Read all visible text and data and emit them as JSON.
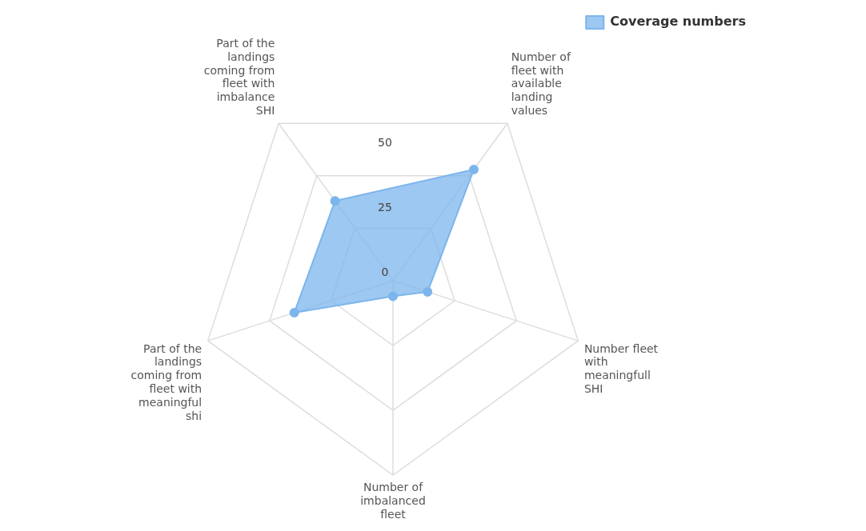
{
  "chart_data": {
    "type": "radar",
    "categories": [
      "Number of fleet with available landing values",
      "Number fleet with meaningfull SHI",
      "Number of imbalanced fleet",
      "Part of the landings coming from fleet with meaningful shi",
      "Part of the landings coming from fleet with imbalance SHI"
    ],
    "series": [
      {
        "name": "Coverage numbers",
        "color": "#7cb5ec",
        "values": [
          53,
          14,
          6,
          40,
          38
        ]
      }
    ],
    "ylim": [
      0,
      75
    ],
    "yticks": [
      0,
      25,
      50
    ],
    "grid": true,
    "legend": "top right",
    "marker": "circle"
  }
}
